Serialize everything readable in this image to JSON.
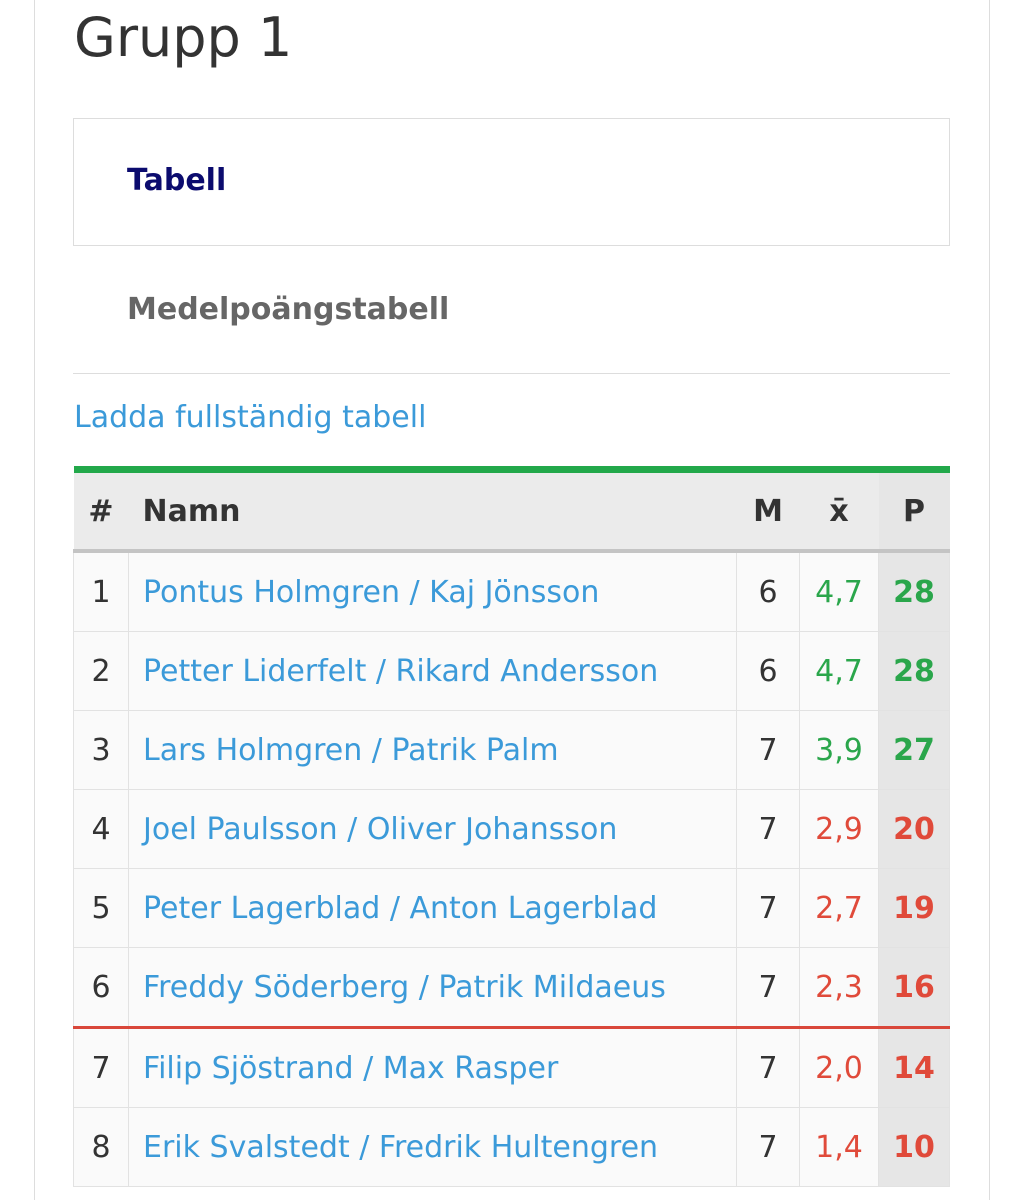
{
  "header": {
    "title": "Grupp 1"
  },
  "tabs": {
    "active": "Tabell",
    "other": "Medelpoängstabell"
  },
  "link": "Ladda fullständig tabell",
  "table": {
    "columns": [
      "#",
      "Namn",
      "M",
      "x̄",
      "P"
    ],
    "rows": [
      [
        1,
        "Pontus Holmgren / Kaj Jönsson",
        6,
        "4,7",
        28
      ],
      [
        2,
        "Petter Liderfelt / Rikard Andersson",
        6,
        "4,7",
        28
      ],
      [
        3,
        "Lars Holmgren / Patrik Palm",
        7,
        "3,9",
        27
      ],
      [
        4,
        "Joel Paulsson / Oliver Johansson",
        7,
        "2,9",
        20
      ],
      [
        5,
        "Peter Lagerblad / Anton Lagerblad",
        7,
        "2,7",
        19
      ],
      [
        6,
        "Freddy Söderberg / Patrik Mildaeus",
        7,
        "2,3",
        16
      ],
      [
        7,
        "Filip Sjöstrand / Max Rasper",
        7,
        "2,0",
        14
      ],
      [
        8,
        "Erik Svalstedt / Fredrik Hultengren",
        7,
        "1,4",
        10
      ]
    ]
  }
}
